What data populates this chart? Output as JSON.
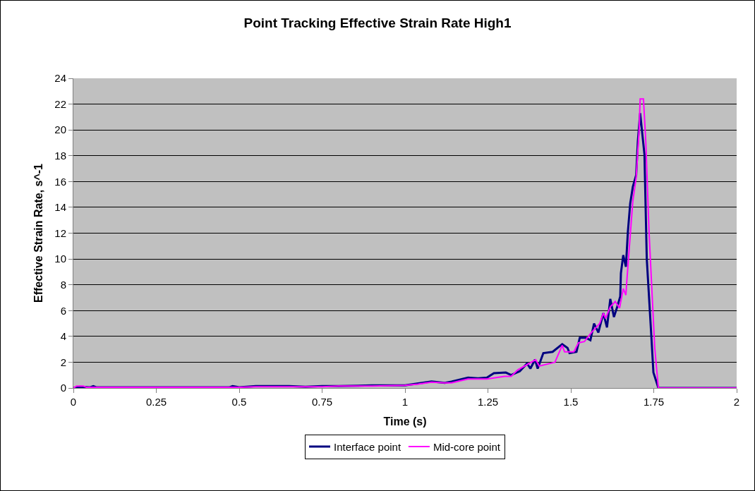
{
  "chart_data": {
    "type": "line",
    "title": "Point Tracking Effective Strain Rate High1",
    "xlabel": "Time (s)",
    "ylabel": "Effective Strain Rate, s^-1",
    "xlim": [
      0,
      2
    ],
    "xticks": [
      0,
      0.25,
      0.5,
      0.75,
      1,
      1.25,
      1.5,
      1.75,
      2
    ],
    "ylim": [
      0,
      24
    ],
    "yticks": [
      0,
      2,
      4,
      6,
      8,
      10,
      12,
      14,
      16,
      18,
      20,
      22,
      24
    ],
    "grid": "y",
    "legend": "bottom",
    "marker": "none",
    "line_style": "solid",
    "series": [
      {
        "name": "Interface point",
        "color": "#000080",
        "x": [
          0,
          0.02,
          0.05,
          0.06,
          0.07,
          0.3,
          0.47,
          0.48,
          0.5,
          0.55,
          0.6,
          0.65,
          0.7,
          0.75,
          0.8,
          0.9,
          1.0,
          1.04,
          1.08,
          1.12,
          1.14,
          1.19,
          1.22,
          1.247,
          1.268,
          1.304,
          1.32,
          1.346,
          1.368,
          1.378,
          1.392,
          1.4,
          1.417,
          1.445,
          1.474,
          1.49,
          1.496,
          1.517,
          1.527,
          1.545,
          1.559,
          1.57,
          1.583,
          1.598,
          1.609,
          1.619,
          1.63,
          1.64,
          1.649,
          1.651,
          1.658,
          1.666,
          1.672,
          1.679,
          1.687,
          1.697,
          1.702,
          1.709,
          1.722,
          1.729,
          1.743,
          1.749,
          1.764,
          1.8,
          2
        ],
        "values": [
          0,
          0.1,
          0.05,
          0.15,
          0.05,
          0.05,
          0.05,
          0.15,
          0.05,
          0.15,
          0.15,
          0.15,
          0.1,
          0.15,
          0.15,
          0.2,
          0.2,
          0.35,
          0.5,
          0.4,
          0.5,
          0.8,
          0.75,
          0.8,
          1.15,
          1.2,
          1.0,
          1.3,
          1.9,
          1.5,
          2.2,
          1.5,
          2.7,
          2.8,
          3.4,
          3.1,
          2.7,
          2.8,
          3.9,
          3.9,
          3.7,
          5.0,
          4.3,
          5.8,
          4.7,
          6.9,
          5.5,
          6.3,
          7.1,
          8.9,
          10.3,
          9.4,
          12.1,
          14.3,
          15.6,
          16.5,
          19.1,
          21.3,
          18.1,
          10.0,
          3.9,
          1.2,
          0,
          0,
          0
        ]
      },
      {
        "name": "Mid-core point",
        "color": "#ff00ff",
        "x": [
          0,
          0.01,
          0.03,
          0.04,
          0.3,
          0.5,
          0.55,
          0.6,
          0.7,
          0.75,
          0.8,
          0.9,
          1.0,
          1.04,
          1.08,
          1.12,
          1.14,
          1.19,
          1.247,
          1.3,
          1.32,
          1.34,
          1.394,
          1.405,
          1.452,
          1.474,
          1.481,
          1.509,
          1.523,
          1.541,
          1.562,
          1.573,
          1.587,
          1.598,
          1.605,
          1.619,
          1.634,
          1.647,
          1.658,
          1.666,
          1.668,
          1.679,
          1.687,
          1.697,
          1.706,
          1.709,
          1.719,
          1.726,
          1.736,
          1.753,
          1.764,
          1.8,
          2
        ],
        "values": [
          0,
          0.15,
          0.15,
          0.05,
          0.05,
          0.05,
          0.1,
          0.1,
          0.1,
          0.1,
          0.15,
          0.15,
          0.2,
          0.3,
          0.45,
          0.4,
          0.4,
          0.7,
          0.7,
          0.9,
          0.9,
          1.4,
          2.2,
          1.7,
          2.0,
          3.3,
          2.8,
          2.8,
          3.5,
          3.6,
          4.3,
          4.6,
          5.0,
          5.8,
          5.4,
          6.3,
          6.7,
          6.2,
          7.7,
          7.2,
          8.0,
          11.8,
          14.5,
          16.3,
          20.0,
          22.4,
          22.4,
          19.1,
          12.0,
          3.1,
          0,
          0,
          0
        ]
      }
    ]
  }
}
